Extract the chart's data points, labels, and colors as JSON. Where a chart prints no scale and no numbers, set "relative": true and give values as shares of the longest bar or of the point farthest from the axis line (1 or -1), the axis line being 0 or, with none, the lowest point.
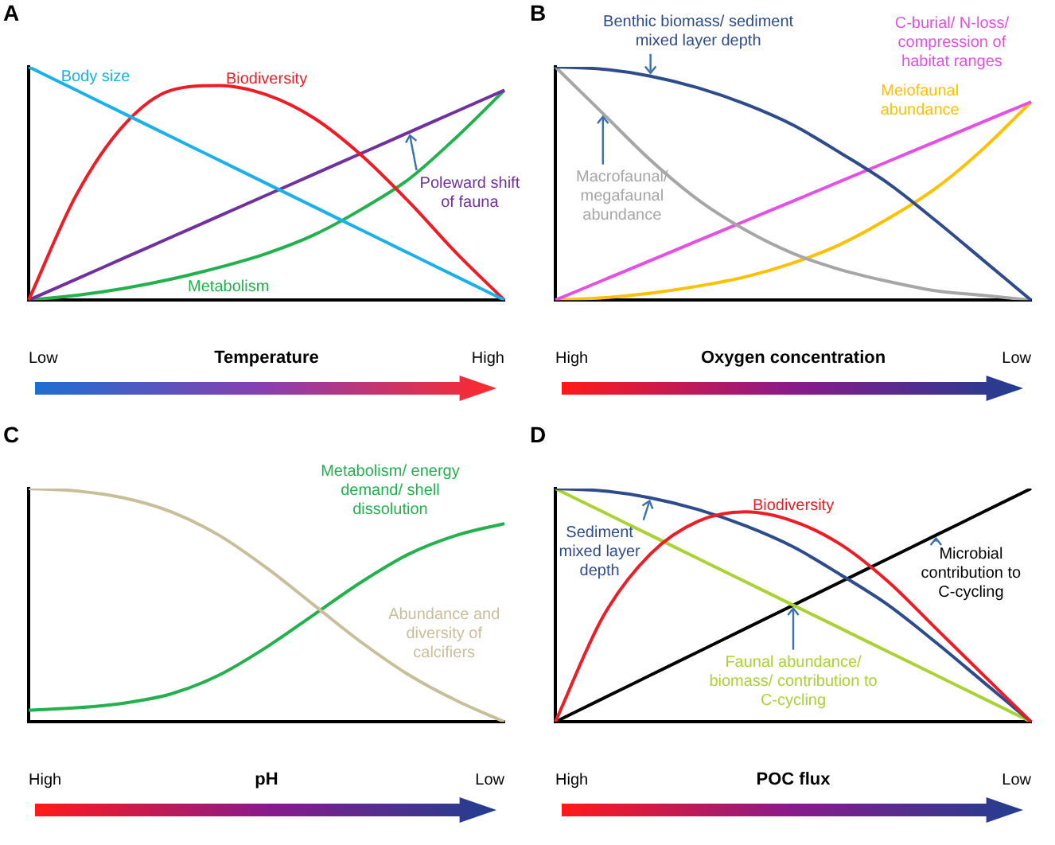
{
  "chart_data": [
    {
      "type": "line",
      "title": "A",
      "xlabel": "Temperature",
      "annotations": [
        "Low",
        "High"
      ],
      "relative": true,
      "categories": [
        null,
        null,
        null,
        null,
        null,
        null,
        null,
        null,
        null,
        null,
        null
      ],
      "grid": false,
      "legend": false,
      "marker": "none",
      "series": [
        {
          "name": "Body size",
          "color": "#1ab0e8",
          "values": [
            1,
            0.9,
            0.8,
            0.7,
            0.6,
            0.5,
            0.4,
            0.3,
            0.2,
            0.1,
            0
          ]
        },
        {
          "name": "Biodiversity",
          "color": "#ee1c24",
          "values": [
            0,
            0.45,
            0.75,
            0.9,
            0.92,
            0.88,
            0.78,
            0.62,
            0.42,
            0.2,
            0
          ]
        },
        {
          "name": "Poleward shift of fauna",
          "color": "#7030a0",
          "values": [
            0,
            0.09,
            0.18,
            0.27,
            0.36,
            0.45,
            0.54,
            0.63,
            0.72,
            0.81,
            0.9
          ]
        },
        {
          "name": "Metabolism",
          "color": "#22b14c",
          "values": [
            0,
            0.02,
            0.05,
            0.09,
            0.14,
            0.2,
            0.28,
            0.39,
            0.52,
            0.7,
            0.9
          ]
        }
      ]
    },
    {
      "type": "line",
      "title": "B",
      "xlabel": "Oxygen concentration",
      "annotations": [
        "High",
        "Low"
      ],
      "relative": true,
      "categories": [
        null,
        null,
        null,
        null,
        null,
        null,
        null,
        null,
        null,
        null,
        null
      ],
      "grid": false,
      "legend": false,
      "marker": "none",
      "series": [
        {
          "name": "Benthic biomass/ sediment mixed layer depth",
          "color": "#2e4b8c",
          "values": [
            1,
            0.99,
            0.96,
            0.91,
            0.84,
            0.75,
            0.63,
            0.5,
            0.34,
            0.17,
            0
          ]
        },
        {
          "name": "Macrofaunal/ megafaunal abundance",
          "color": "#a6a6a6",
          "values": [
            1,
            0.8,
            0.6,
            0.43,
            0.3,
            0.2,
            0.13,
            0.08,
            0.04,
            0.02,
            0
          ]
        },
        {
          "name": "C-burial/ N-loss/ compression of habitat ranges",
          "color": "#e64fe6",
          "values": [
            0,
            0.085,
            0.17,
            0.255,
            0.34,
            0.425,
            0.51,
            0.595,
            0.68,
            0.765,
            0.85
          ]
        },
        {
          "name": "Meiofaunal abundance",
          "color": "#ffc000",
          "values": [
            0,
            0.01,
            0.03,
            0.06,
            0.1,
            0.16,
            0.24,
            0.35,
            0.48,
            0.65,
            0.85
          ]
        }
      ]
    },
    {
      "type": "line",
      "title": "C",
      "xlabel": "pH",
      "annotations": [
        "High",
        "Low"
      ],
      "relative": true,
      "categories": [
        null,
        null,
        null,
        null,
        null,
        null,
        null,
        null,
        null,
        null,
        null
      ],
      "grid": false,
      "legend": false,
      "marker": "none",
      "series": [
        {
          "name": "Abundance and diversity of calcifiers",
          "color": "#c8bf9a",
          "values": [
            1,
            0.99,
            0.96,
            0.9,
            0.8,
            0.66,
            0.5,
            0.34,
            0.2,
            0.09,
            0
          ]
        },
        {
          "name": "Metabolism/ energy demand/ shell dissolution",
          "color": "#22b14c",
          "values": [
            0.05,
            0.06,
            0.08,
            0.12,
            0.2,
            0.32,
            0.46,
            0.6,
            0.72,
            0.8,
            0.85
          ]
        }
      ]
    },
    {
      "type": "line",
      "title": "D",
      "xlabel": "POC flux",
      "annotations": [
        "High",
        "Low"
      ],
      "relative": true,
      "categories": [
        null,
        null,
        null,
        null,
        null,
        null,
        null,
        null,
        null,
        null,
        null
      ],
      "grid": false,
      "legend": false,
      "marker": "none",
      "series": [
        {
          "name": "Biodiversity",
          "color": "#ee1c24",
          "values": [
            0,
            0.45,
            0.72,
            0.86,
            0.9,
            0.86,
            0.76,
            0.6,
            0.4,
            0.2,
            0
          ]
        },
        {
          "name": "Sediment mixed layer depth",
          "color": "#2e4b8c",
          "values": [
            1,
            0.99,
            0.96,
            0.91,
            0.84,
            0.75,
            0.63,
            0.5,
            0.34,
            0.17,
            0
          ]
        },
        {
          "name": "Faunal abundance/ biomass/ contribution to C-cycling",
          "color": "#a9d232",
          "values": [
            1,
            0.9,
            0.8,
            0.7,
            0.6,
            0.5,
            0.4,
            0.3,
            0.2,
            0.1,
            0
          ]
        },
        {
          "name": "Microbial contribution to C-cycling",
          "color": "#000000",
          "values": [
            0,
            0.1,
            0.2,
            0.3,
            0.4,
            0.5,
            0.6,
            0.7,
            0.8,
            0.9,
            1
          ]
        }
      ]
    }
  ]
}
